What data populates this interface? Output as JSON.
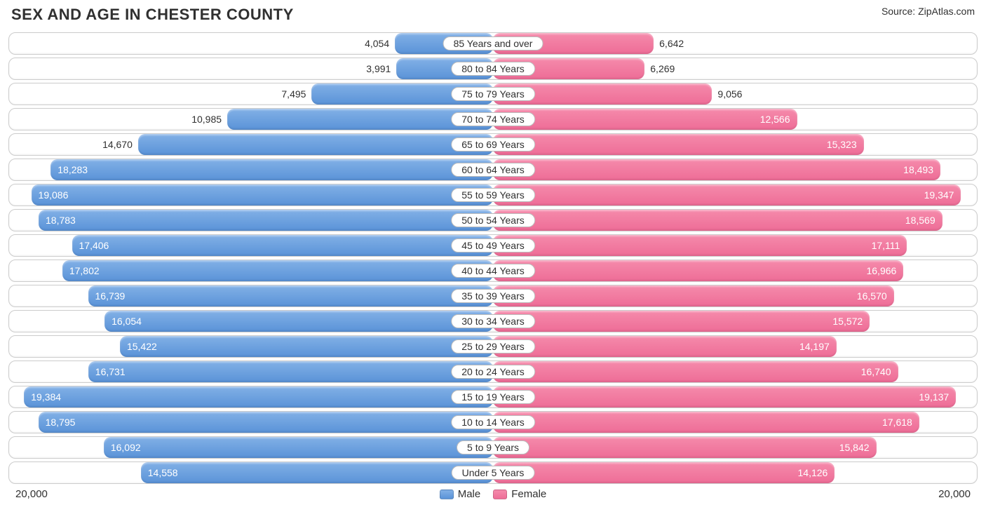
{
  "title": "SEX AND AGE IN CHESTER COUNTY",
  "source": "Source: ZipAtlas.com",
  "chart": {
    "type": "population-pyramid",
    "axis_max": 20000,
    "axis_label": "20,000",
    "male_color_top": "#82b0e6",
    "male_color_bottom": "#5a93d8",
    "female_color_top": "#f58aab",
    "female_color_bottom": "#ee6d97",
    "row_border_color": "#cccccc",
    "background_color": "#ffffff",
    "text_color": "#303030",
    "font_family": "Arial",
    "label_fontsize": 14,
    "title_fontsize": 22,
    "legend": {
      "male": "Male",
      "female": "Female"
    },
    "rows": [
      {
        "category": "85 Years and over",
        "male": 4054,
        "male_label": "4,054",
        "female": 6642,
        "female_label": "6,642",
        "male_inside": false,
        "female_inside": false
      },
      {
        "category": "80 to 84 Years",
        "male": 3991,
        "male_label": "3,991",
        "female": 6269,
        "female_label": "6,269",
        "male_inside": false,
        "female_inside": false
      },
      {
        "category": "75 to 79 Years",
        "male": 7495,
        "male_label": "7,495",
        "female": 9056,
        "female_label": "9,056",
        "male_inside": false,
        "female_inside": false
      },
      {
        "category": "70 to 74 Years",
        "male": 10985,
        "male_label": "10,985",
        "female": 12566,
        "female_label": "12,566",
        "male_inside": false,
        "female_inside": true
      },
      {
        "category": "65 to 69 Years",
        "male": 14670,
        "male_label": "14,670",
        "female": 15323,
        "female_label": "15,323",
        "male_inside": false,
        "female_inside": true
      },
      {
        "category": "60 to 64 Years",
        "male": 18283,
        "male_label": "18,283",
        "female": 18493,
        "female_label": "18,493",
        "male_inside": true,
        "female_inside": true
      },
      {
        "category": "55 to 59 Years",
        "male": 19086,
        "male_label": "19,086",
        "female": 19347,
        "female_label": "19,347",
        "male_inside": true,
        "female_inside": true
      },
      {
        "category": "50 to 54 Years",
        "male": 18783,
        "male_label": "18,783",
        "female": 18569,
        "female_label": "18,569",
        "male_inside": true,
        "female_inside": true
      },
      {
        "category": "45 to 49 Years",
        "male": 17406,
        "male_label": "17,406",
        "female": 17111,
        "female_label": "17,111",
        "male_inside": true,
        "female_inside": true
      },
      {
        "category": "40 to 44 Years",
        "male": 17802,
        "male_label": "17,802",
        "female": 16966,
        "female_label": "16,966",
        "male_inside": true,
        "female_inside": true
      },
      {
        "category": "35 to 39 Years",
        "male": 16739,
        "male_label": "16,739",
        "female": 16570,
        "female_label": "16,570",
        "male_inside": true,
        "female_inside": true
      },
      {
        "category": "30 to 34 Years",
        "male": 16054,
        "male_label": "16,054",
        "female": 15572,
        "female_label": "15,572",
        "male_inside": true,
        "female_inside": true
      },
      {
        "category": "25 to 29 Years",
        "male": 15422,
        "male_label": "15,422",
        "female": 14197,
        "female_label": "14,197",
        "male_inside": true,
        "female_inside": true
      },
      {
        "category": "20 to 24 Years",
        "male": 16731,
        "male_label": "16,731",
        "female": 16740,
        "female_label": "16,740",
        "male_inside": true,
        "female_inside": true
      },
      {
        "category": "15 to 19 Years",
        "male": 19384,
        "male_label": "19,384",
        "female": 19137,
        "female_label": "19,137",
        "male_inside": true,
        "female_inside": true
      },
      {
        "category": "10 to 14 Years",
        "male": 18795,
        "male_label": "18,795",
        "female": 17618,
        "female_label": "17,618",
        "male_inside": true,
        "female_inside": true
      },
      {
        "category": "5 to 9 Years",
        "male": 16092,
        "male_label": "16,092",
        "female": 15842,
        "female_label": "15,842",
        "male_inside": true,
        "female_inside": true
      },
      {
        "category": "Under 5 Years",
        "male": 14558,
        "male_label": "14,558",
        "female": 14126,
        "female_label": "14,126",
        "male_inside": true,
        "female_inside": true
      }
    ]
  }
}
